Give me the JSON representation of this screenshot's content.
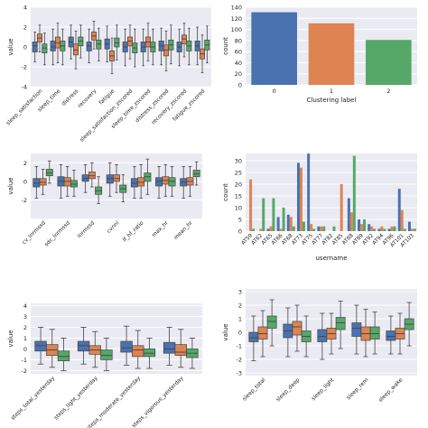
{
  "colors": {
    "c0": "#4a72b0",
    "c1": "#dd8452",
    "c2": "#55a868",
    "panel": "#eaeaf2"
  },
  "chart_data": [
    {
      "type": "box",
      "ylabel": "value",
      "ylim": [
        -4,
        4
      ],
      "ticks": [
        4,
        2,
        0,
        -2,
        -4
      ],
      "categories": [
        "sleep_satisfaction",
        "sleep_time",
        "distress",
        "recovery",
        "fatigue",
        "sleep_satisfaction_zscored",
        "sleep_time_zscored",
        "distress_zscored",
        "recovery_zscored",
        "fatigue_zscored"
      ],
      "boxes": [
        [
          [
            -0.5,
            0.5,
            0.1,
            -1.5,
            1.5
          ],
          [
            0.5,
            1.3,
            0.9,
            -0.5,
            2.2
          ],
          [
            -0.6,
            0.3,
            -0.1,
            -1.8,
            1.4
          ]
        ],
        [
          [
            -0.4,
            0.6,
            0.0,
            -1.8,
            1.8
          ],
          [
            -0.1,
            1.0,
            0.4,
            -1.6,
            2.4
          ],
          [
            -0.4,
            0.6,
            0.1,
            -1.8,
            1.8
          ]
        ],
        [
          [
            0.0,
            1.0,
            0.5,
            -1.2,
            2.2
          ],
          [
            -0.8,
            0.3,
            -0.3,
            -2.2,
            1.6
          ],
          [
            0.1,
            1.0,
            0.6,
            -1.1,
            2.2
          ]
        ],
        [
          [
            -0.4,
            0.5,
            0.1,
            -1.6,
            1.8
          ],
          [
            0.7,
            1.5,
            1.1,
            -0.2,
            2.6
          ],
          [
            -0.2,
            0.7,
            0.3,
            -1.4,
            1.9
          ]
        ],
        [
          [
            -0.2,
            0.8,
            0.3,
            -1.5,
            2.1
          ],
          [
            -1.4,
            -0.4,
            -0.9,
            -2.7,
            0.9
          ],
          [
            0.0,
            0.9,
            0.4,
            -1.3,
            2.2
          ]
        ],
        [
          [
            -0.5,
            0.5,
            0.0,
            -1.9,
            1.8
          ],
          [
            0.1,
            1.0,
            0.6,
            -1.2,
            2.2
          ],
          [
            -0.6,
            0.4,
            -0.1,
            -2.0,
            1.8
          ]
        ],
        [
          [
            -0.5,
            0.5,
            0.0,
            -1.9,
            1.8
          ],
          [
            0.0,
            1.0,
            0.5,
            -1.4,
            2.4
          ],
          [
            -0.5,
            0.5,
            0.0,
            -1.8,
            1.8
          ]
        ],
        [
          [
            -0.4,
            0.6,
            0.1,
            -1.8,
            1.9
          ],
          [
            -0.9,
            0.2,
            -0.3,
            -2.4,
            1.6
          ],
          [
            -0.3,
            0.7,
            0.2,
            -1.7,
            2.2
          ]
        ],
        [
          [
            -0.5,
            0.5,
            0.0,
            -1.9,
            1.8
          ],
          [
            0.3,
            1.2,
            0.8,
            -1.0,
            2.4
          ],
          [
            -0.4,
            0.6,
            0.1,
            -1.8,
            1.9
          ]
        ],
        [
          [
            -0.4,
            0.6,
            0.1,
            -1.8,
            2.0
          ],
          [
            -1.2,
            -0.2,
            -0.7,
            -2.6,
            1.2
          ],
          [
            -0.3,
            0.7,
            0.2,
            -1.6,
            2.1
          ]
        ]
      ]
    },
    {
      "type": "bar",
      "xlabel": "Clustering label",
      "ylabel": "count",
      "ylim": [
        0,
        140
      ],
      "ticks": [
        140,
        120,
        100,
        80,
        60,
        40,
        20,
        0
      ],
      "categories": [
        "0",
        "1",
        "2"
      ],
      "values": [
        131,
        111,
        81
      ]
    },
    {
      "type": "box",
      "ylabel": "value",
      "ylim": [
        -4,
        3
      ],
      "ticks": [
        2,
        0,
        -2
      ],
      "categories": [
        "cv_lnrmssd",
        "sdc_lnrmssd",
        "lnrmssd",
        "cvnni",
        "lf_hf_ratio",
        "max_hr",
        "mean_hr"
      ],
      "boxes": [
        [
          [
            -0.6,
            0.3,
            -0.2,
            -1.8,
            1.6
          ],
          [
            -0.4,
            0.3,
            -0.1,
            -1.4,
            1.3
          ],
          [
            0.6,
            1.3,
            0.9,
            -0.2,
            2.2
          ]
        ],
        [
          [
            -0.5,
            0.5,
            0.0,
            -1.8,
            1.8
          ],
          [
            -0.5,
            0.4,
            0.0,
            -1.6,
            1.6
          ],
          [
            -0.6,
            0.1,
            -0.3,
            -1.6,
            1.2
          ]
        ],
        [
          [
            0.0,
            0.7,
            0.3,
            -1.2,
            1.8
          ],
          [
            0.3,
            1.0,
            0.6,
            -0.6,
            2.0
          ],
          [
            -1.4,
            -0.6,
            -1.0,
            -2.4,
            0.5
          ]
        ],
        [
          [
            -0.2,
            0.7,
            0.3,
            -1.6,
            2.0
          ],
          [
            0.0,
            0.7,
            0.3,
            -1.2,
            1.8
          ],
          [
            -1.2,
            -0.4,
            -0.8,
            -2.2,
            0.7
          ]
        ],
        [
          [
            -0.6,
            0.3,
            -0.2,
            -1.8,
            1.6
          ],
          [
            -0.5,
            0.4,
            -0.1,
            -1.8,
            1.8
          ],
          [
            0.0,
            0.9,
            0.5,
            -1.4,
            2.4
          ]
        ],
        [
          [
            -0.5,
            0.4,
            0.0,
            -1.8,
            1.6
          ],
          [
            -0.3,
            0.5,
            0.1,
            -1.6,
            1.8
          ],
          [
            -0.5,
            0.4,
            0.0,
            -1.6,
            1.6
          ]
        ],
        [
          [
            -0.5,
            0.3,
            -0.1,
            -1.8,
            1.6
          ],
          [
            -0.4,
            0.4,
            0.0,
            -1.6,
            1.6
          ],
          [
            0.5,
            1.2,
            0.8,
            -0.4,
            2.1
          ]
        ]
      ]
    },
    {
      "type": "bar",
      "xlabel": "username",
      "ylabel": "count",
      "ylim": [
        0,
        33
      ],
      "ticks": [
        30,
        25,
        20,
        15,
        10,
        5,
        0
      ],
      "categories": [
        "AT59",
        "AT62",
        "AT65",
        "AT66",
        "AT68",
        "AT73",
        "AT75",
        "AT77",
        "AT82",
        "AT85",
        "AT88",
        "AT89",
        "AT92",
        "AT94",
        "AT96",
        "AT101",
        "AT103"
      ],
      "series": [
        {
          "values": [
            0,
            0,
            1,
            6,
            7,
            29,
            33,
            2,
            0,
            0,
            14,
            5,
            3,
            1,
            1,
            18,
            4
          ]
        },
        {
          "values": [
            22,
            1,
            2,
            1,
            6,
            27,
            3,
            2,
            0,
            20,
            8,
            3,
            2,
            2,
            2,
            9,
            1
          ]
        },
        {
          "values": [
            1,
            14,
            14,
            10,
            2,
            4,
            1,
            2,
            2,
            0,
            32,
            5,
            1,
            1,
            2,
            1,
            1
          ]
        }
      ]
    },
    {
      "type": "box",
      "ylabel": "value",
      "ylim": [
        -2.3,
        4.2
      ],
      "ticks": [
        4,
        3,
        2,
        1,
        0,
        -1,
        -2
      ],
      "categories": [
        "steps_total_yesterday",
        "steps_light_yesterday",
        "steps_moderate_yesterday",
        "steps_vigorous_yesterday"
      ],
      "boxes": [
        [
          [
            -0.2,
            0.7,
            0.3,
            -1.4,
            2.0
          ],
          [
            -0.6,
            0.4,
            -0.1,
            -1.7,
            1.8
          ],
          [
            -1.1,
            -0.2,
            -0.7,
            -2.0,
            1.0
          ]
        ],
        [
          [
            -0.2,
            0.7,
            0.3,
            -1.4,
            2.0
          ],
          [
            -0.5,
            0.3,
            -0.1,
            -1.7,
            1.6
          ],
          [
            -1.0,
            -0.1,
            -0.6,
            -2.0,
            1.0
          ]
        ],
        [
          [
            -0.3,
            0.7,
            0.1,
            -1.5,
            2.1
          ],
          [
            -0.7,
            0.3,
            -0.1,
            -1.8,
            1.7
          ],
          [
            -0.7,
            0.0,
            -0.4,
            -1.8,
            1.0
          ]
        ],
        [
          [
            -0.4,
            0.6,
            0.0,
            -1.5,
            2.0
          ],
          [
            -0.6,
            0.4,
            -0.3,
            -1.7,
            1.8
          ],
          [
            -0.8,
            0.0,
            -0.4,
            -1.8,
            1.0
          ]
        ]
      ]
    },
    {
      "type": "box",
      "ylabel": "value",
      "ylim": [
        -3.2,
        3.2
      ],
      "ticks": [
        3,
        2,
        1,
        0,
        -1,
        -2,
        -3
      ],
      "categories": [
        "sleep_total",
        "sleep_deep",
        "sleep_light",
        "sleep_rem",
        "sleep_wake"
      ],
      "boxes": [
        [
          [
            -0.7,
            0.0,
            -0.4,
            -2.1,
            1.2
          ],
          [
            -0.5,
            0.4,
            -0.1,
            -1.8,
            1.6
          ],
          [
            0.3,
            1.2,
            0.8,
            -1.0,
            2.4
          ]
        ],
        [
          [
            -0.4,
            0.6,
            0.1,
            -1.8,
            1.8
          ],
          [
            -0.2,
            0.8,
            0.4,
            -1.4,
            2.0
          ],
          [
            -0.7,
            0.1,
            -0.3,
            -1.8,
            1.2
          ]
        ],
        [
          [
            -0.7,
            0.2,
            -0.3,
            -2.0,
            1.4
          ],
          [
            -0.5,
            0.3,
            -0.1,
            -1.6,
            1.4
          ],
          [
            0.2,
            1.1,
            0.7,
            -1.2,
            2.3
          ]
        ],
        [
          [
            -0.3,
            0.7,
            0.3,
            -1.6,
            2.0
          ],
          [
            -0.6,
            0.4,
            -0.1,
            -1.8,
            1.7
          ],
          [
            -0.5,
            0.4,
            -0.1,
            -1.6,
            1.5
          ]
        ],
        [
          [
            -0.6,
            0.1,
            -0.3,
            -1.6,
            1.2
          ],
          [
            -0.5,
            0.3,
            -0.1,
            -1.6,
            1.4
          ],
          [
            0.2,
            1.0,
            0.6,
            -1.0,
            2.2
          ]
        ]
      ]
    }
  ]
}
